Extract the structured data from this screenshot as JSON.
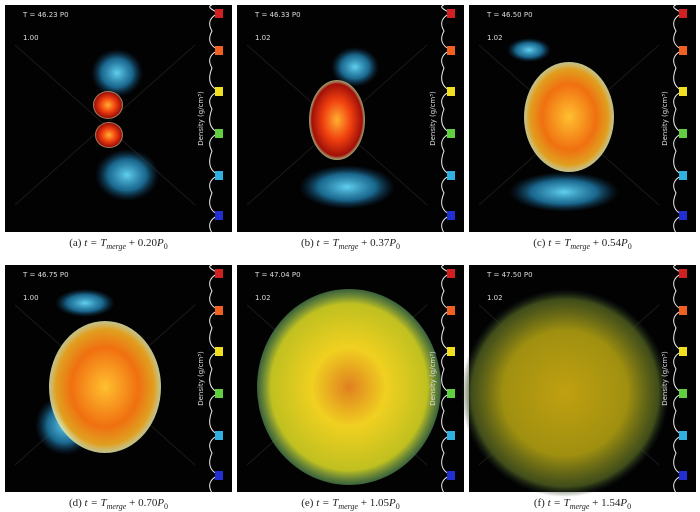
{
  "figure": {
    "caption_parts": {
      "t_equals": "t = T",
      "subscript": "merge",
      "plus": "+",
      "period": "P",
      "period_sub": "0"
    },
    "colorbar_label": "Density (g/cm³)",
    "panels": [
      {
        "time": "T = 46.23 P0",
        "scale": "1.00",
        "tag": "(a)",
        "offset": "0.20"
      },
      {
        "time": "T = 46.33 P0",
        "scale": "1.02",
        "tag": "(b)",
        "offset": "0.37"
      },
      {
        "time": "T = 46.50 P0",
        "scale": "1.02",
        "tag": "(c)",
        "offset": "0.54"
      },
      {
        "time": "T = 46.75 P0",
        "scale": "1.00",
        "tag": "(d)",
        "offset": "0.70"
      },
      {
        "time": "T = 47.04 P0",
        "scale": "1.02",
        "tag": "(e)",
        "offset": "1.05"
      },
      {
        "time": "T = 47.50 P0",
        "scale": "1.02",
        "tag": "(f)",
        "offset": "1.54"
      }
    ]
  }
}
